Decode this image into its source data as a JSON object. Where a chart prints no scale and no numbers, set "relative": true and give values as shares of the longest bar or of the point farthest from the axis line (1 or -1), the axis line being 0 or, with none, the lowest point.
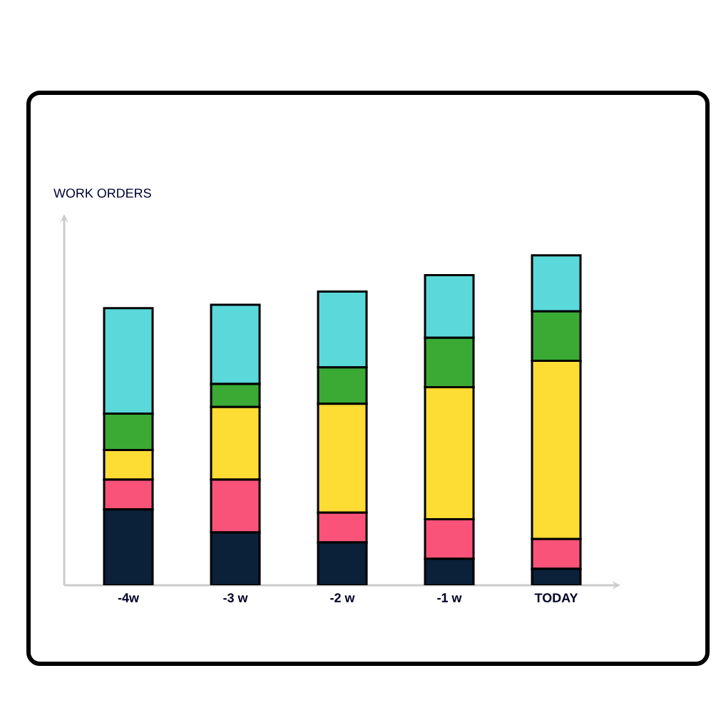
{
  "chart_data": {
    "type": "bar",
    "stacked": true,
    "relative": true,
    "ylabel": "WORK ORDERS",
    "categories": [
      "-4w",
      "-3 w",
      "-2 w",
      "-1 w",
      "TODAY"
    ],
    "series": [
      {
        "color": "#0b2039",
        "values": [
          0.23,
          0.16,
          0.13,
          0.08,
          0.05
        ]
      },
      {
        "color": "#f9537a",
        "values": [
          0.09,
          0.16,
          0.09,
          0.12,
          0.09
        ]
      },
      {
        "color": "#fddc33",
        "values": [
          0.09,
          0.22,
          0.33,
          0.4,
          0.54
        ]
      },
      {
        "color": "#3aaa35",
        "values": [
          0.11,
          0.07,
          0.11,
          0.15,
          0.15
        ]
      },
      {
        "color": "#5bd8da",
        "values": [
          0.32,
          0.24,
          0.23,
          0.19,
          0.17
        ]
      }
    ]
  }
}
